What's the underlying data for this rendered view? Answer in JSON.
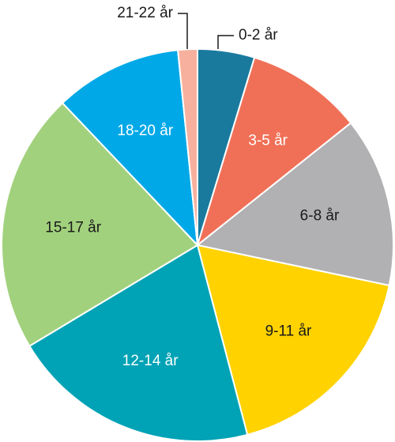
{
  "chart_data": {
    "type": "pie",
    "title": "",
    "start": "top",
    "direction": "clockwise",
    "slices": [
      {
        "label": "0-2 år",
        "value": 4.7,
        "color": "#1a7a9e",
        "text_color": "#1a1a1a",
        "outside": true
      },
      {
        "label": "3-5 år",
        "value": 9.6,
        "color": "#f07057",
        "text_color": "#ffffff",
        "outside": false
      },
      {
        "label": "6-8 år",
        "value": 14.0,
        "color": "#b1b1b3",
        "text_color": "#1a1a1a",
        "outside": false
      },
      {
        "label": "9-11 år",
        "value": 17.6,
        "color": "#ffd200",
        "text_color": "#1a1a1a",
        "outside": false
      },
      {
        "label": "12-14 år",
        "value": 20.5,
        "color": "#00a2b5",
        "text_color": "#ffffff",
        "outside": false
      },
      {
        "label": "15-17 år",
        "value": 21.5,
        "color": "#a2d17d",
        "text_color": "#1a1a1a",
        "outside": false
      },
      {
        "label": "18-20 år",
        "value": 10.5,
        "color": "#00a8e8",
        "text_color": "#ffffff",
        "outside": false
      },
      {
        "label": "21-22 år",
        "value": 1.6,
        "color": "#f7b09e",
        "text_color": "#1a1a1a",
        "outside": true
      }
    ]
  }
}
